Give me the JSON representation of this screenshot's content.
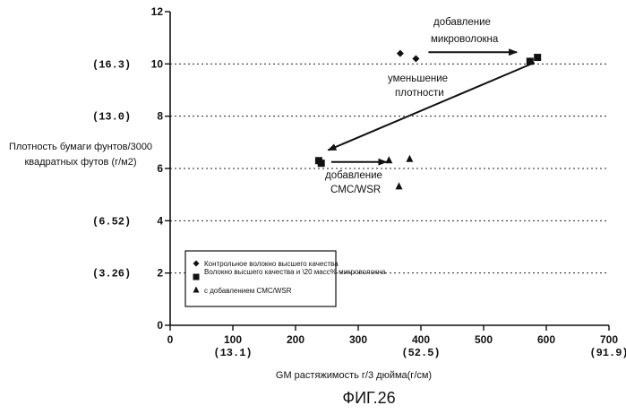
{
  "chart_data": {
    "type": "scatter",
    "xlabel": "GM растяжимость г/3 дюйма(г/см)",
    "ylabel_lines": [
      "Плотность бумаги фунтов/3000",
      "квадратных футов (г/м2)"
    ],
    "xlim": [
      0,
      700
    ],
    "ylim": [
      0,
      12
    ],
    "x_ticks": [
      {
        "value": 0,
        "label": "0",
        "alt": ""
      },
      {
        "value": 100,
        "label": "100",
        "alt": "(13.1)"
      },
      {
        "value": 200,
        "label": "200",
        "alt": ""
      },
      {
        "value": 300,
        "label": "300",
        "alt": ""
      },
      {
        "value": 400,
        "label": "400",
        "alt": "(52.5)"
      },
      {
        "value": 500,
        "label": "500",
        "alt": ""
      },
      {
        "value": 600,
        "label": "600",
        "alt": ""
      },
      {
        "value": 700,
        "label": "700",
        "alt": "(91.9)"
      }
    ],
    "y_ticks": [
      {
        "value": 0,
        "label": "0",
        "alt": ""
      },
      {
        "value": 2,
        "label": "2",
        "alt": "(3.26)"
      },
      {
        "value": 4,
        "label": "4",
        "alt": "(6.52)"
      },
      {
        "value": 6,
        "label": "6",
        "alt": ""
      },
      {
        "value": 8,
        "label": "8",
        "alt": "(13.0)"
      },
      {
        "value": 10,
        "label": "10",
        "alt": "(16.3)"
      },
      {
        "value": 12,
        "label": "12",
        "alt": ""
      }
    ],
    "grid": "horizontal dashed at 2,4,6,8,10",
    "series": [
      {
        "name": "Контрольное волокно высшего качества",
        "marker": "diamond",
        "points": [
          [
            367,
            10.4
          ],
          [
            392,
            10.2
          ]
        ]
      },
      {
        "name": "Волокно высшего качества и \\20 масс% микроволокна",
        "marker": "square",
        "points": [
          [
            237,
            6.3
          ],
          [
            241,
            6.2
          ],
          [
            574,
            10.1
          ],
          [
            586,
            10.25
          ]
        ]
      },
      {
        "name": "с добавлением CMC/WSR",
        "marker": "triangle",
        "points": [
          [
            349,
            6.3
          ],
          [
            382,
            6.35
          ],
          [
            365,
            5.3
          ]
        ]
      }
    ],
    "legend_placement": "bottom-left",
    "annotations": [
      {
        "lines": [
          "добавление",
          "микроволокна"
        ],
        "arrow_from": [
          412,
          10.45
        ],
        "arrow_to": [
          553,
          10.45
        ]
      },
      {
        "lines": [
          "уменьшение",
          "плотности"
        ],
        "arrow_from": [
          581,
          10.05
        ],
        "arrow_to": [
          252,
          6.7
        ]
      },
      {
        "lines": [
          "добавление",
          "CMC/WSR"
        ],
        "arrow_from": [
          257,
          6.25
        ],
        "arrow_to": [
          345,
          6.25
        ]
      }
    ]
  },
  "figure_label": "ФИГ.26"
}
